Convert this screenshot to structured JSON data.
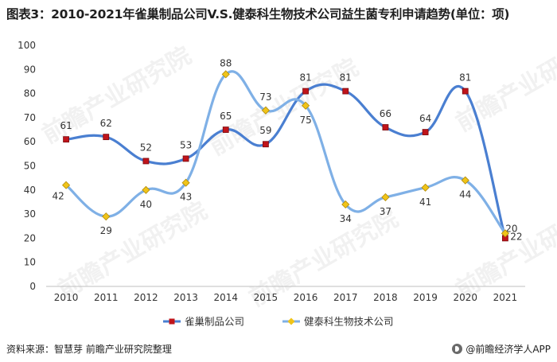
{
  "header": {
    "title": "图表3：2010-2021年雀巢制品公司V.S.健泰科生物技术公司益生菌专利申请趋势(单位：项)"
  },
  "footer": {
    "source": "资料来源：智慧芽 前瞻产业研究院整理",
    "brand": "@前瞻经济学人APP"
  },
  "watermark": {
    "text": "前瞻产业研究院"
  },
  "chart_data": {
    "type": "line",
    "title": "图表3：2010-2021年雀巢制品公司V.S.健泰科生物技术公司益生菌专利申请趋势(单位：项)",
    "categories": [
      "2010",
      "2011",
      "2012",
      "2013",
      "2014",
      "2015",
      "2016",
      "2017",
      "2018",
      "2019",
      "2020",
      "2021"
    ],
    "ylim": [
      0,
      100
    ],
    "yticks": [
      0,
      10,
      20,
      30,
      40,
      50,
      60,
      70,
      80,
      90,
      100
    ],
    "grid": false,
    "smooth": true,
    "legend_position": "bottom",
    "series": [
      {
        "name": "雀巢制品公司",
        "values": [
          61,
          62,
          52,
          53,
          65,
          59,
          81,
          81,
          66,
          64,
          81,
          20
        ],
        "color": "#4a7fd1",
        "marker": "square",
        "marker_color": "#c0141b"
      },
      {
        "name": "健泰科生物技术公司",
        "values": [
          42,
          29,
          40,
          43,
          88,
          73,
          75,
          34,
          37,
          41,
          44,
          22
        ],
        "color": "#7fb0e6",
        "marker": "diamond",
        "marker_color": "#f0c419"
      }
    ]
  }
}
